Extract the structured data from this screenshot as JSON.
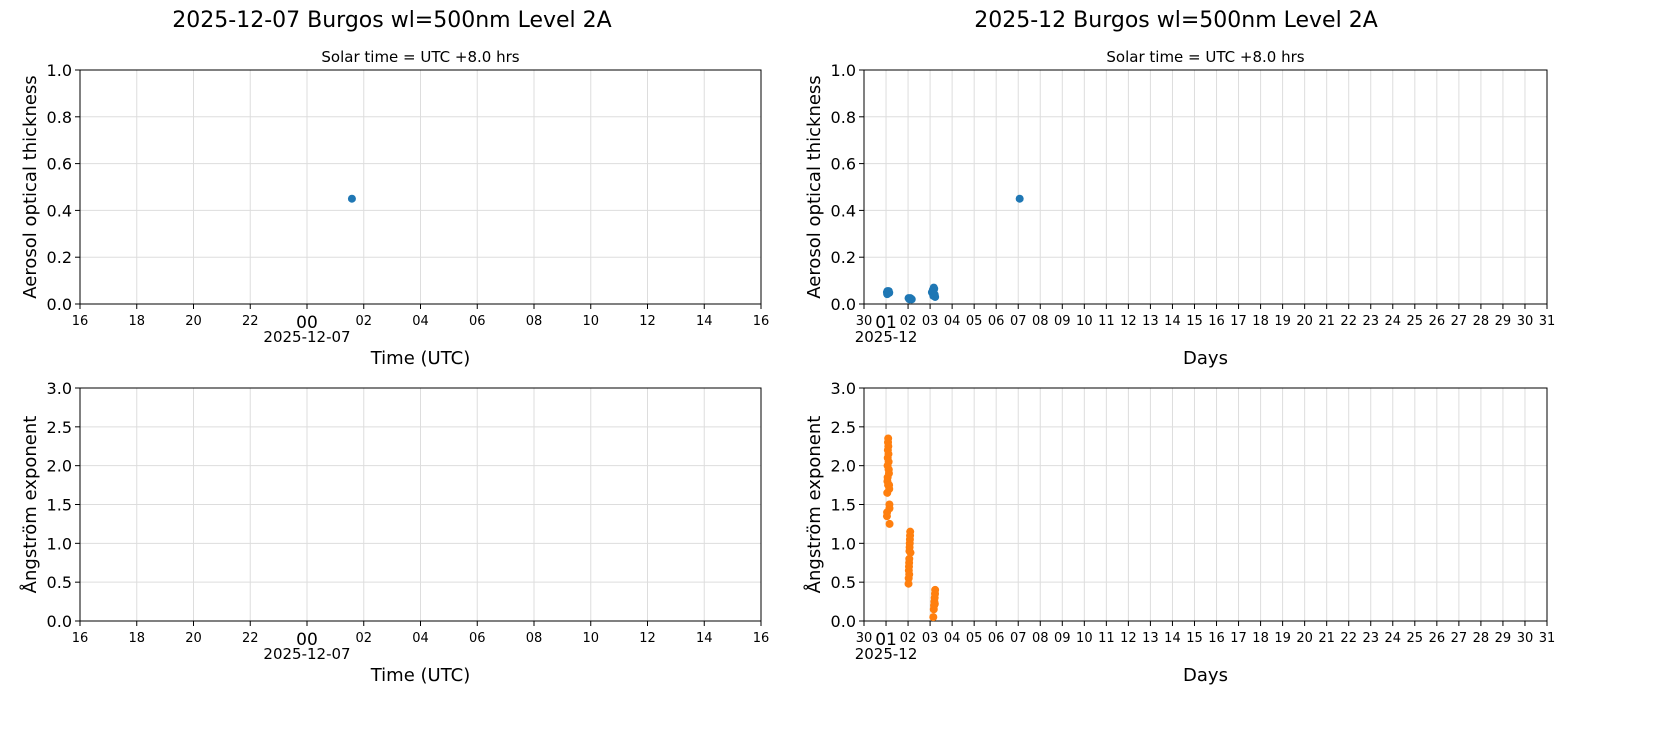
{
  "titles": [
    "2025-12-07  Burgos  wl=500nm  Level 2A",
    "2025-12  Burgos  wl=500nm  Level 2A"
  ],
  "colors": {
    "aod": "#1f77b4",
    "angstrom": "#ff7f0e",
    "grid": "#dddddd"
  },
  "chart_data": [
    {
      "type": "scatter",
      "subtitle": "Solar time = UTC +8.0 hrs",
      "xlabel": "Time (UTC)",
      "ylabel": "Aerosol optical thickness",
      "xlim": [
        "2025-12-06 16:00",
        "2025-12-07 16:00"
      ],
      "ylim": [
        0,
        1.0
      ],
      "yticks": [
        "0.0",
        "0.2",
        "0.4",
        "0.6",
        "0.8",
        "1.0"
      ],
      "xticks": [
        "16",
        "18",
        "20",
        "22",
        "00",
        "02",
        "04",
        "06",
        "08",
        "10",
        "12",
        "14",
        "16"
      ],
      "xtick_major": "00",
      "xtick_sublabel": "2025-12-07",
      "grid": true,
      "series": [
        {
          "color": "#1f77b4",
          "points": [
            [
              "2025-12-07 01:35",
              0.45
            ]
          ]
        }
      ]
    },
    {
      "type": "scatter",
      "subtitle": "Solar time = UTC +8.0 hrs",
      "xlabel": "Days",
      "ylabel": "Aerosol optical thickness",
      "xlim": [
        "2025-11-30 00:00",
        "2025-12-31 00:00"
      ],
      "ylim": [
        0,
        1.0
      ],
      "yticks": [
        "0.0",
        "0.2",
        "0.4",
        "0.6",
        "0.8",
        "1.0"
      ],
      "xticks": [
        "30",
        "01",
        "02",
        "03",
        "04",
        "05",
        "06",
        "07",
        "08",
        "09",
        "10",
        "11",
        "12",
        "13",
        "14",
        "15",
        "16",
        "17",
        "18",
        "19",
        "20",
        "21",
        "22",
        "23",
        "24",
        "25",
        "26",
        "27",
        "28",
        "29",
        "30",
        "31"
      ],
      "xtick_major": "01",
      "xtick_sublabel": "2025-12",
      "grid": true,
      "series": [
        {
          "color": "#1f77b4",
          "points": [
            [
              "2025-12-01 01:00",
              0.05
            ],
            [
              "2025-12-01 01:15",
              0.042
            ],
            [
              "2025-12-01 01:30",
              0.055
            ],
            [
              "2025-12-01 02:00",
              0.045
            ],
            [
              "2025-12-01 02:30",
              0.05
            ],
            [
              "2025-12-01 03:00",
              0.055
            ],
            [
              "2025-12-01 03:30",
              0.048
            ],
            [
              "2025-12-02 00:30",
              0.025
            ],
            [
              "2025-12-02 01:30",
              0.02
            ],
            [
              "2025-12-02 02:30",
              0.025
            ],
            [
              "2025-12-02 03:30",
              0.022
            ],
            [
              "2025-12-02 04:00",
              0.02
            ],
            [
              "2025-12-03 02:00",
              0.05
            ],
            [
              "2025-12-03 03:00",
              0.06
            ],
            [
              "2025-12-03 03:30",
              0.035
            ],
            [
              "2025-12-03 04:00",
              0.07
            ],
            [
              "2025-12-03 04:30",
              0.065
            ],
            [
              "2025-12-03 05:00",
              0.04
            ],
            [
              "2025-12-03 05:30",
              0.03
            ],
            [
              "2025-12-07 01:35",
              0.45
            ]
          ]
        }
      ]
    },
    {
      "type": "scatter",
      "xlabel": "Time (UTC)",
      "ylabel": "Ångström exponent",
      "xlim": [
        "2025-12-06 16:00",
        "2025-12-07 16:00"
      ],
      "ylim": [
        0,
        3.0
      ],
      "yticks": [
        "0.0",
        "0.5",
        "1.0",
        "1.5",
        "2.0",
        "2.5",
        "3.0"
      ],
      "xticks": [
        "16",
        "18",
        "20",
        "22",
        "00",
        "02",
        "04",
        "06",
        "08",
        "10",
        "12",
        "14",
        "16"
      ],
      "xtick_major": "00",
      "xtick_sublabel": "2025-12-07",
      "grid": true,
      "series": [
        {
          "color": "#ff7f0e",
          "points": []
        }
      ]
    },
    {
      "type": "scatter",
      "xlabel": "Days",
      "ylabel": "Ångström exponent",
      "xlim": [
        "2025-11-30 00:00",
        "2025-12-31 00:00"
      ],
      "ylim": [
        0,
        3.0
      ],
      "yticks": [
        "0.0",
        "0.5",
        "1.0",
        "1.5",
        "2.0",
        "2.5",
        "3.0"
      ],
      "xticks": [
        "30",
        "01",
        "02",
        "03",
        "04",
        "05",
        "06",
        "07",
        "08",
        "09",
        "10",
        "11",
        "12",
        "13",
        "14",
        "15",
        "16",
        "17",
        "18",
        "19",
        "20",
        "21",
        "22",
        "23",
        "24",
        "25",
        "26",
        "27",
        "28",
        "29",
        "30",
        "31"
      ],
      "xtick_major": "01",
      "xtick_sublabel": "2025-12",
      "grid": true,
      "series": [
        {
          "color": "#ff7f0e",
          "points": [
            [
              "2025-12-01 01:00",
              1.35
            ],
            [
              "2025-12-01 01:10",
              1.4
            ],
            [
              "2025-12-01 01:20",
              1.65
            ],
            [
              "2025-12-01 01:30",
              1.8
            ],
            [
              "2025-12-01 01:40",
              2.0
            ],
            [
              "2025-12-01 01:45",
              1.85
            ],
            [
              "2025-12-01 01:50",
              2.1
            ],
            [
              "2025-12-01 02:00",
              2.2
            ],
            [
              "2025-12-01 02:10",
              2.3
            ],
            [
              "2025-12-01 02:15",
              1.75
            ],
            [
              "2025-12-01 02:20",
              2.35
            ],
            [
              "2025-12-01 02:30",
              2.25
            ],
            [
              "2025-12-01 02:40",
              2.15
            ],
            [
              "2025-12-01 02:45",
              1.95
            ],
            [
              "2025-12-01 02:50",
              2.05
            ],
            [
              "2025-12-01 03:00",
              1.95
            ],
            [
              "2025-12-01 03:10",
              1.9
            ],
            [
              "2025-12-01 03:20",
              1.75
            ],
            [
              "2025-12-01 03:30",
              1.7
            ],
            [
              "2025-12-01 03:40",
              1.5
            ],
            [
              "2025-12-01 03:45",
              1.45
            ],
            [
              "2025-12-01 03:50",
              1.25
            ],
            [
              "2025-12-02 00:30",
              0.48
            ],
            [
              "2025-12-02 00:40",
              0.55
            ],
            [
              "2025-12-02 00:50",
              0.65
            ],
            [
              "2025-12-02 01:00",
              0.7
            ],
            [
              "2025-12-02 01:10",
              0.75
            ],
            [
              "2025-12-02 01:15",
              0.6
            ],
            [
              "2025-12-02 01:20",
              0.8
            ],
            [
              "2025-12-02 01:30",
              0.9
            ],
            [
              "2025-12-02 01:40",
              0.95
            ],
            [
              "2025-12-02 01:50",
              1.0
            ],
            [
              "2025-12-02 02:00",
              1.05
            ],
            [
              "2025-12-02 02:10",
              1.1
            ],
            [
              "2025-12-02 02:20",
              1.15
            ],
            [
              "2025-12-02 02:40",
              0.88
            ],
            [
              "2025-12-03 03:30",
              0.05
            ],
            [
              "2025-12-03 04:00",
              0.15
            ],
            [
              "2025-12-03 04:20",
              0.2
            ],
            [
              "2025-12-03 04:40",
              0.25
            ],
            [
              "2025-12-03 05:00",
              0.3
            ],
            [
              "2025-12-03 05:10",
              0.22
            ],
            [
              "2025-12-03 05:20",
              0.35
            ],
            [
              "2025-12-03 05:30",
              0.4
            ]
          ]
        }
      ]
    }
  ]
}
